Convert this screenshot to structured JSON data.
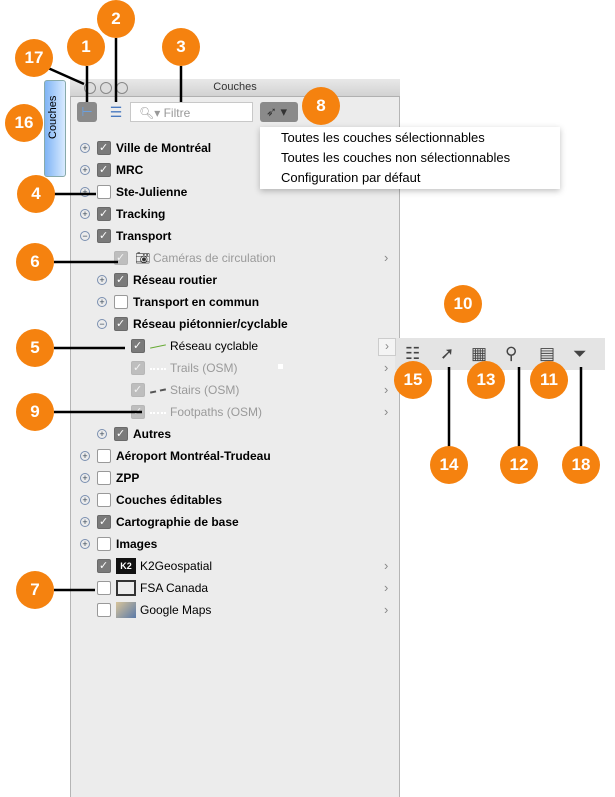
{
  "window": {
    "title": "Couches",
    "side_tab": "Couches"
  },
  "toolbar": {
    "filter_placeholder": "Filtre"
  },
  "dropdown_menu": [
    "Toutes les couches sélectionnables",
    "Toutes les couches non sélectionnables",
    "Configuration par défaut"
  ],
  "layers": [
    {
      "label": "Ville de Montréal",
      "checked": true,
      "bold": true
    },
    {
      "label": "MRC",
      "checked": true,
      "bold": true
    },
    {
      "label": "Ste-Julienne",
      "checked": false,
      "bold": true
    },
    {
      "label": "Tracking",
      "checked": true,
      "bold": true
    },
    {
      "label": "Transport",
      "checked": true,
      "bold": true,
      "expanded": true
    },
    {
      "label": "Caméras de circulation",
      "checked": true,
      "dimmed": true
    },
    {
      "label": "Réseau routier",
      "checked": true,
      "bold": true
    },
    {
      "label": "Transport en commun",
      "checked": false,
      "bold": true
    },
    {
      "label": "Réseau piétonnier/cyclable",
      "checked": true,
      "bold": true,
      "expanded": true
    },
    {
      "label": "Réseau cyclable",
      "checked": true
    },
    {
      "label": "Trails (OSM)",
      "checked": true,
      "dimmed": true
    },
    {
      "label": "Stairs (OSM)",
      "checked": true,
      "dimmed": true
    },
    {
      "label": "Footpaths (OSM)",
      "checked": true,
      "dimmed": true
    },
    {
      "label": "Autres",
      "checked": true,
      "bold": true
    },
    {
      "label": "Aéroport Montréal-Trudeau",
      "checked": false,
      "bold": true
    },
    {
      "label": "ZPP",
      "checked": false,
      "bold": true
    },
    {
      "label": "Couches éditables",
      "checked": false,
      "bold": true
    },
    {
      "label": "Cartographie de base",
      "checked": true,
      "bold": true
    },
    {
      "label": "Images",
      "checked": false,
      "bold": true
    },
    {
      "label": "K2Geospatial",
      "checked": true
    },
    {
      "label": "FSA Canada",
      "checked": false
    },
    {
      "label": "Google Maps",
      "checked": false
    }
  ],
  "callouts": [
    "17",
    "1",
    "2",
    "3",
    "16",
    "8",
    "4",
    "6",
    "10",
    "5",
    "9",
    "15",
    "13",
    "11",
    "14",
    "12",
    "18",
    "7"
  ],
  "colors": {
    "callout": "#f5820f",
    "panel": "#ececec"
  }
}
